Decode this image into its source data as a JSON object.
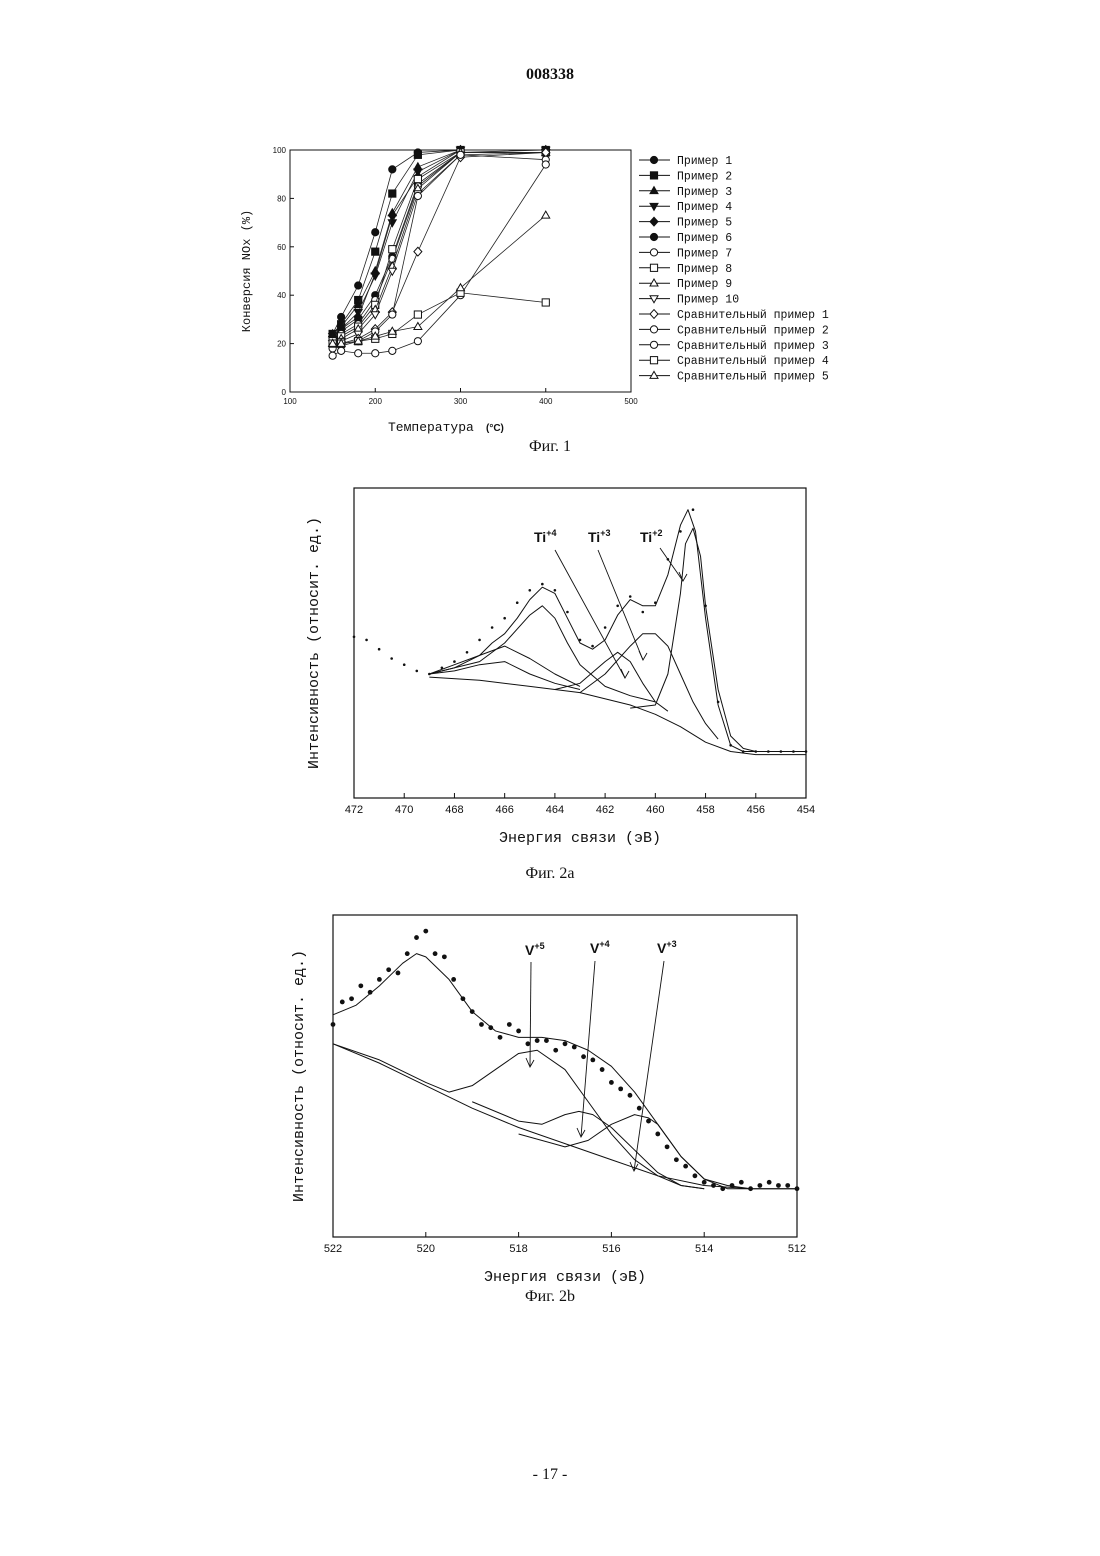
{
  "document": {
    "number": "008338",
    "page": "- 17 -"
  },
  "chart_data": [
    {
      "type": "line",
      "caption": "Фиг. 1",
      "xlabel": "Температура",
      "xunit": "(°C)",
      "ylabel": "Конверсия NOx (%)",
      "xlim": [
        100,
        500
      ],
      "ylim": [
        0,
        100
      ],
      "xticks": [
        100,
        200,
        300,
        400,
        500
      ],
      "yticks": [
        0,
        20,
        40,
        60,
        80,
        100
      ],
      "legend_position": "right",
      "series": [
        {
          "name": "Пример 1",
          "marker": "circle-filled",
          "x": [
            150,
            160,
            180,
            200,
            220,
            250,
            300,
            400
          ],
          "y": [
            24,
            31,
            44,
            66,
            92,
            99,
            100,
            100
          ]
        },
        {
          "name": "Пример 2",
          "marker": "square-filled",
          "x": [
            150,
            160,
            180,
            200,
            220,
            250,
            300,
            400
          ],
          "y": [
            24,
            28,
            38,
            58,
            82,
            98,
            100,
            100
          ]
        },
        {
          "name": "Пример 3",
          "marker": "triangle-up-filled",
          "x": [
            150,
            160,
            180,
            200,
            220,
            250,
            300,
            400
          ],
          "y": [
            24,
            27,
            36,
            50,
            74,
            93,
            100,
            100
          ]
        },
        {
          "name": "Пример 4",
          "marker": "triangle-down-filled",
          "x": [
            150,
            160,
            180,
            200,
            220,
            250,
            300,
            400
          ],
          "y": [
            23,
            26,
            33,
            48,
            70,
            91,
            100,
            100
          ]
        },
        {
          "name": "Пример 5",
          "marker": "diamond-filled",
          "x": [
            150,
            160,
            180,
            200,
            220,
            250,
            300,
            400
          ],
          "y": [
            23,
            26,
            31,
            49,
            73,
            89,
            100,
            100
          ]
        },
        {
          "name": "Пример 6",
          "marker": "circle-filled",
          "x": [
            150,
            160,
            180,
            200,
            220,
            250,
            300,
            400
          ],
          "y": [
            22,
            25,
            30,
            40,
            56,
            86,
            99,
            100
          ]
        },
        {
          "name": "Пример 7",
          "marker": "circle-open",
          "x": [
            150,
            160,
            180,
            200,
            220,
            250,
            300,
            400
          ],
          "y": [
            21,
            24,
            28,
            38,
            55,
            85,
            99,
            99
          ]
        },
        {
          "name": "Пример 8",
          "marker": "square-open",
          "x": [
            150,
            160,
            180,
            200,
            220,
            250,
            300,
            400
          ],
          "y": [
            21,
            23,
            27,
            36,
            59,
            88,
            99,
            99
          ]
        },
        {
          "name": "Пример 9",
          "marker": "triangle-up-open",
          "x": [
            150,
            160,
            180,
            200,
            220,
            250,
            300,
            400
          ],
          "y": [
            20,
            22,
            26,
            34,
            52,
            84,
            99,
            99
          ]
        },
        {
          "name": "Пример 10",
          "marker": "triangle-down-open",
          "x": [
            150,
            160,
            180,
            200,
            220,
            250,
            300,
            400
          ],
          "y": [
            20,
            21,
            24,
            32,
            50,
            82,
            98,
            99
          ]
        },
        {
          "name": "Сравнительный пример 1",
          "marker": "diamond-open",
          "x": [
            150,
            160,
            180,
            200,
            220,
            250,
            300,
            400
          ],
          "y": [
            19,
            20,
            22,
            26,
            33,
            58,
            97,
            99
          ]
        },
        {
          "name": "Сравнительный пример 2",
          "marker": "circle-open",
          "x": [
            150,
            160,
            180,
            200,
            220,
            250,
            300,
            400
          ],
          "y": [
            18,
            19,
            21,
            25,
            32,
            81,
            98,
            96
          ]
        },
        {
          "name": "Сравнительный пример 3",
          "marker": "circle-open",
          "x": [
            150,
            160,
            180,
            200,
            220,
            250,
            300,
            400
          ],
          "y": [
            15,
            17,
            16,
            16,
            17,
            21,
            40,
            94
          ]
        },
        {
          "name": "Сравнительный пример 4",
          "marker": "square-open",
          "x": [
            150,
            160,
            180,
            200,
            220,
            250,
            300,
            400
          ],
          "y": [
            20,
            20,
            21,
            22,
            24,
            32,
            41,
            37
          ]
        },
        {
          "name": "Сравнительный пример 5",
          "marker": "triangle-up-open",
          "x": [
            150,
            160,
            180,
            200,
            220,
            250,
            300,
            400
          ],
          "y": [
            20,
            20,
            21,
            23,
            25,
            27,
            43,
            73
          ]
        }
      ]
    },
    {
      "type": "line",
      "caption": "Фиг. 2a",
      "xlabel": "Энергия связи (эВ)",
      "ylabel": "Интенсивность (относит. ед.)",
      "xlim": [
        472,
        454
      ],
      "xticks": [
        472,
        470,
        468,
        466,
        464,
        462,
        460,
        458,
        456,
        454
      ],
      "xtick_labels": [
        "472",
        "470",
        "468",
        "466",
        "464",
        "462",
        "460",
        "458",
        "456",
        "454"
      ],
      "annotations": [
        "Ti+4",
        "Ti+3",
        "Ti+2"
      ],
      "series": [
        {
          "name": "data",
          "style": "dots",
          "x": [
            472,
            471.5,
            471,
            470.5,
            470,
            469.5,
            469,
            468.5,
            468,
            467.5,
            467,
            466.5,
            466,
            465.5,
            465,
            464.5,
            464,
            463.5,
            463,
            462.5,
            462,
            461.5,
            461,
            460.5,
            460,
            459.5,
            459,
            458.5,
            458,
            457.5,
            457,
            456.5,
            456,
            455.5,
            455,
            454.5,
            454
          ],
          "y": [
            0.52,
            0.51,
            0.48,
            0.45,
            0.43,
            0.41,
            0.4,
            0.42,
            0.44,
            0.47,
            0.51,
            0.55,
            0.58,
            0.63,
            0.67,
            0.69,
            0.67,
            0.6,
            0.51,
            0.49,
            0.55,
            0.62,
            0.65,
            0.6,
            0.63,
            0.77,
            0.86,
            0.93,
            0.62,
            0.31,
            0.17,
            0.15,
            0.15,
            0.15,
            0.15,
            0.15,
            0.15
          ]
        },
        {
          "name": "envelope",
          "style": "line",
          "x": [
            469,
            468,
            467,
            466.5,
            466,
            465.5,
            465,
            464.5,
            464,
            463.5,
            463,
            462.5,
            462,
            461.5,
            461,
            460.5,
            460,
            459.5,
            459,
            458.7,
            458.4,
            458,
            457.5,
            457,
            456.5,
            456,
            455,
            454
          ],
          "y": [
            0.4,
            0.42,
            0.46,
            0.5,
            0.53,
            0.58,
            0.64,
            0.68,
            0.66,
            0.58,
            0.5,
            0.48,
            0.51,
            0.59,
            0.64,
            0.62,
            0.62,
            0.72,
            0.88,
            0.93,
            0.86,
            0.58,
            0.3,
            0.17,
            0.15,
            0.15,
            0.15,
            0.15
          ]
        },
        {
          "name": "component-1",
          "style": "line",
          "x": [
            469,
            467,
            466,
            465,
            464.5,
            464,
            463.5,
            463,
            462,
            461,
            460
          ],
          "y": [
            0.4,
            0.44,
            0.5,
            0.59,
            0.62,
            0.58,
            0.5,
            0.43,
            0.36,
            0.33,
            0.31
          ]
        },
        {
          "name": "component-2",
          "style": "line",
          "x": [
            469,
            468,
            467,
            466,
            465,
            464,
            463
          ],
          "y": [
            0.4,
            0.43,
            0.46,
            0.49,
            0.45,
            0.4,
            0.36
          ]
        },
        {
          "name": "component-3",
          "style": "line",
          "x": [
            469,
            468,
            467,
            466,
            465,
            464,
            463
          ],
          "y": [
            0.4,
            0.41,
            0.43,
            0.44,
            0.4,
            0.37,
            0.35
          ]
        },
        {
          "name": "component-4",
          "style": "line",
          "x": [
            464,
            463,
            462,
            461.5,
            461,
            460.5,
            460,
            459.5
          ],
          "y": [
            0.35,
            0.37,
            0.44,
            0.47,
            0.44,
            0.37,
            0.31,
            0.28
          ]
        },
        {
          "name": "component-5",
          "style": "line",
          "x": [
            463,
            462,
            461,
            460.5,
            460,
            459.5,
            459,
            458.5,
            458,
            457.5
          ],
          "y": [
            0.34,
            0.4,
            0.49,
            0.53,
            0.53,
            0.49,
            0.4,
            0.31,
            0.24,
            0.19
          ]
        },
        {
          "name": "component-6",
          "style": "line",
          "x": [
            461,
            460,
            459.5,
            459,
            458.8,
            458.5,
            458.2,
            458,
            457.5,
            457,
            456.5,
            456
          ],
          "y": [
            0.29,
            0.3,
            0.4,
            0.66,
            0.82,
            0.87,
            0.78,
            0.62,
            0.35,
            0.2,
            0.16,
            0.15
          ]
        },
        {
          "name": "background",
          "style": "line",
          "x": [
            469,
            467,
            465,
            463,
            461,
            460,
            459,
            458,
            457,
            456,
            455,
            454
          ],
          "y": [
            0.39,
            0.38,
            0.36,
            0.34,
            0.3,
            0.27,
            0.23,
            0.18,
            0.15,
            0.14,
            0.14,
            0.14
          ]
        }
      ]
    },
    {
      "type": "line",
      "caption": "Фиг. 2b",
      "xlabel": "Энергия связи (эВ)",
      "ylabel": "Интенсивность (относит. ед.)",
      "xlim": [
        522,
        512
      ],
      "xticks": [
        522,
        520,
        518,
        516,
        514,
        512
      ],
      "xtick_labels": [
        "522",
        "520",
        "518",
        "516",
        "514",
        "512"
      ],
      "annotations": [
        "V+5",
        "V+4",
        "V+3"
      ],
      "series": [
        {
          "name": "data",
          "style": "dots",
          "x": [
            522,
            521.8,
            521.6,
            521.4,
            521.2,
            521,
            520.8,
            520.6,
            520.4,
            520.2,
            520,
            519.8,
            519.6,
            519.4,
            519.2,
            519,
            518.8,
            518.6,
            518.4,
            518.2,
            518,
            517.8,
            517.6,
            517.4,
            517.2,
            517,
            516.8,
            516.6,
            516.4,
            516.2,
            516,
            515.8,
            515.6,
            515.4,
            515.2,
            515,
            514.8,
            514.6,
            514.4,
            514.2,
            514,
            513.8,
            513.6,
            513.4,
            513.2,
            513,
            512.8,
            512.6,
            512.4,
            512.2,
            512
          ],
          "y": [
            0.66,
            0.73,
            0.74,
            0.78,
            0.76,
            0.8,
            0.83,
            0.82,
            0.88,
            0.93,
            0.95,
            0.88,
            0.87,
            0.8,
            0.74,
            0.7,
            0.66,
            0.65,
            0.62,
            0.66,
            0.64,
            0.6,
            0.61,
            0.61,
            0.58,
            0.6,
            0.59,
            0.56,
            0.55,
            0.52,
            0.48,
            0.46,
            0.44,
            0.4,
            0.36,
            0.32,
            0.28,
            0.24,
            0.22,
            0.19,
            0.17,
            0.16,
            0.15,
            0.16,
            0.17,
            0.15,
            0.16,
            0.17,
            0.16,
            0.16,
            0.15
          ]
        },
        {
          "name": "envelope",
          "style": "line",
          "x": [
            522,
            521.5,
            521,
            520.5,
            520.2,
            520,
            519.5,
            519,
            518.5,
            518,
            517.5,
            517,
            516.5,
            516,
            515.5,
            515,
            514.5,
            514,
            513.5,
            513,
            512
          ],
          "y": [
            0.69,
            0.72,
            0.78,
            0.85,
            0.88,
            0.87,
            0.8,
            0.7,
            0.64,
            0.62,
            0.62,
            0.61,
            0.58,
            0.53,
            0.45,
            0.35,
            0.25,
            0.18,
            0.15,
            0.15,
            0.15
          ]
        },
        {
          "name": "component-1",
          "style": "line",
          "x": [
            522,
            521,
            520,
            519.5,
            519,
            518.5,
            518,
            517.6,
            517,
            516.5,
            516,
            515.5,
            515,
            514.5,
            514
          ],
          "y": [
            0.6,
            0.55,
            0.48,
            0.45,
            0.47,
            0.52,
            0.57,
            0.58,
            0.52,
            0.42,
            0.32,
            0.24,
            0.19,
            0.16,
            0.15
          ]
        },
        {
          "name": "component-2",
          "style": "line",
          "x": [
            519,
            518,
            517.5,
            517,
            516.7,
            516.4,
            516,
            515.5,
            515,
            514.5,
            514
          ],
          "y": [
            0.42,
            0.36,
            0.35,
            0.38,
            0.39,
            0.38,
            0.34,
            0.27,
            0.2,
            0.16,
            0.15
          ]
        },
        {
          "name": "component-3",
          "style": "line",
          "x": [
            518,
            517,
            516.5,
            516,
            515.5,
            515.2,
            515,
            514.5,
            514,
            513.5,
            513
          ],
          "y": [
            0.32,
            0.28,
            0.3,
            0.35,
            0.38,
            0.37,
            0.35,
            0.25,
            0.18,
            0.16,
            0.15
          ]
        },
        {
          "name": "background",
          "style": "line",
          "x": [
            522,
            521,
            520,
            519,
            518,
            517,
            516,
            515,
            514,
            513,
            512
          ],
          "y": [
            0.6,
            0.54,
            0.47,
            0.4,
            0.34,
            0.29,
            0.24,
            0.19,
            0.16,
            0.15,
            0.15
          ]
        }
      ]
    }
  ],
  "captions": {
    "fig1": "Фиг. 1",
    "fig2a": "Фиг. 2a",
    "fig2b": "Фиг. 2b"
  }
}
